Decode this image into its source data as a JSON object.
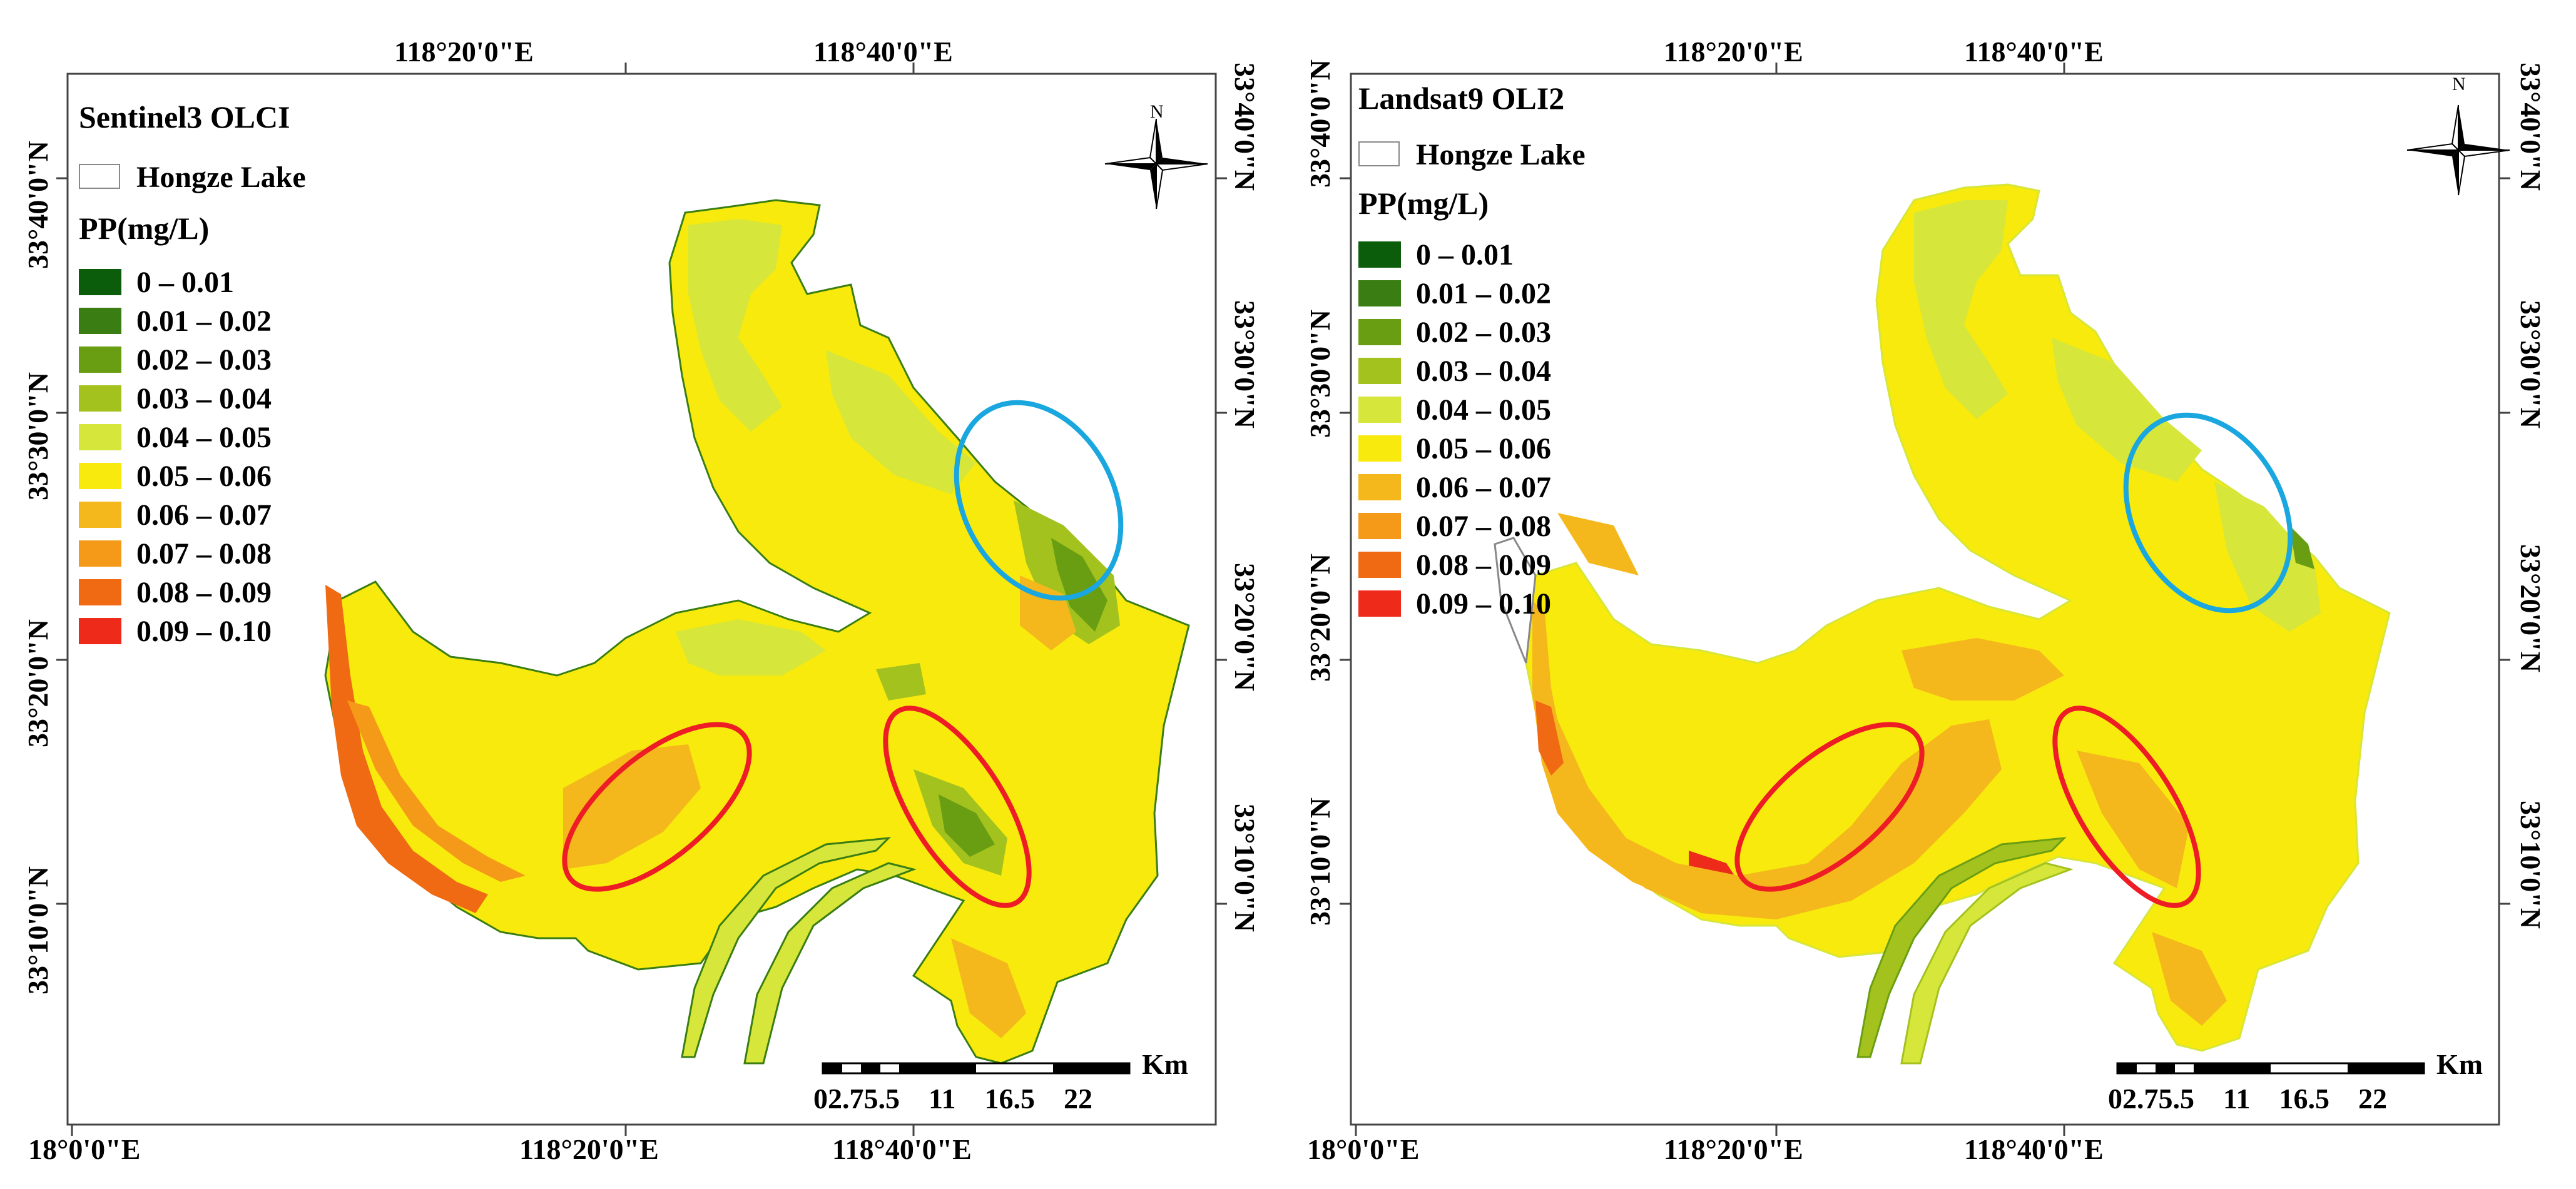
{
  "panels": [
    {
      "sensor": "Sentinel3 OLCI",
      "lake_label": "Hongze Lake",
      "unit_label": "PP(mg/L)",
      "north": "N",
      "lon_top": [
        "118°20'0\"E",
        "118°40'0\"E"
      ],
      "lon_bottom": [
        "18°0'0\"E",
        "118°20'0\"E",
        "118°40'0\"E"
      ],
      "lat_left": [
        "33°40'0\"N",
        "33°30'0\"N",
        "33°20'0\"N",
        "33°10'0\"N"
      ],
      "lat_right": [
        "33°40'0\"N",
        "33°30'0\"N",
        "33°20'0\"N",
        "33°10'0\"N"
      ],
      "scale_unit": "Km",
      "scale_ticks": "02.75.5    11    16.5    22"
    },
    {
      "sensor": "Landsat9 OLI2",
      "lake_label": "Hongze Lake",
      "unit_label": "PP(mg/L)",
      "north": "N",
      "lon_top": [
        "118°20'0\"E",
        "118°40'0\"E"
      ],
      "lon_bottom": [
        "18°0'0\"E",
        "118°20'0\"E",
        "118°40'0\"E"
      ],
      "lat_left": [
        "33°40'0\"N",
        "33°30'0\"N",
        "33°20'0\"N",
        "33°10'0\"N"
      ],
      "lat_right": [
        "33°40'0\"N",
        "33°30'0\"N",
        "33°20'0\"N",
        "33°10'0\"N"
      ],
      "scale_unit": "Km",
      "scale_ticks": "02.75.5    11    16.5    22"
    }
  ],
  "legend_classes": [
    {
      "label": "0 – 0.01",
      "color": "#0b5d0b"
    },
    {
      "label": "0.01 – 0.02",
      "color": "#3a7d12"
    },
    {
      "label": "0.02 – 0.03",
      "color": "#6a9e12"
    },
    {
      "label": "0.03 – 0.04",
      "color": "#a3c21e"
    },
    {
      "label": "0.04 – 0.05",
      "color": "#d6e63a"
    },
    {
      "label": "0.05 – 0.06",
      "color": "#f7ea0c"
    },
    {
      "label": "0.06 – 0.07",
      "color": "#f5b81c"
    },
    {
      "label": "0.07 – 0.08",
      "color": "#f59a18"
    },
    {
      "label": "0.08 – 0.09",
      "color": "#f06a14"
    },
    {
      "label": "0.09 – 0.10",
      "color": "#ee2a1a"
    }
  ],
  "annotation_colors": {
    "red_ellipse": "#ee1c25",
    "blue_ellipse": "#1aa7df"
  }
}
